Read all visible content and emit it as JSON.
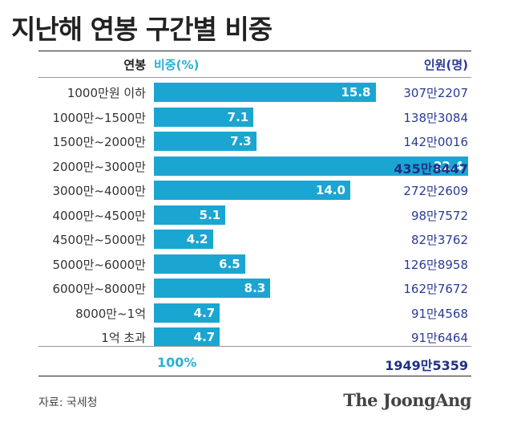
{
  "title": "지난해 연봉 구간별 비중",
  "header": {
    "label_col": "연봉",
    "share_col": "비중(%)",
    "pop_col": "인원(명)"
  },
  "chart_data": {
    "type": "bar",
    "title": "지난해 연봉 구간별 비중",
    "categories": [
      "1000만원 이하",
      "1000만~1500만",
      "1500만~2000만",
      "2000만~3000만",
      "3000만~4000만",
      "4000만~4500만",
      "4500만~5000만",
      "5000만~6000만",
      "6000만~8000만",
      "8000만~1억",
      "1억 초과"
    ],
    "values": [
      15.8,
      7.1,
      7.3,
      22.4,
      14.0,
      5.1,
      4.2,
      6.5,
      8.3,
      4.7,
      4.7
    ],
    "value_labels": [
      "15.8",
      "7.1",
      "7.3",
      "22.4",
      "14.0",
      "5.1",
      "4.2",
      "6.5",
      "8.3",
      "4.7",
      "4.7"
    ],
    "counts": [
      "307만2207",
      "138만3084",
      "142만0016",
      "435만8447",
      "272만2609",
      "98만7572",
      "82만3762",
      "126만8958",
      "162만7672",
      "91만4568",
      "91만6464"
    ],
    "highlight_index": 3,
    "xlim": [
      0,
      22.4
    ],
    "xlabel": "비중(%)",
    "ylabel": "연봉",
    "total_share": "100%",
    "total_count": "1949만5359"
  },
  "colors": {
    "bar": "#1ba6d2",
    "accent": "#2bb0d6",
    "count": "#2a3b96"
  },
  "footer": {
    "source": "자료: 국세청",
    "brand": "The JoongAng"
  }
}
